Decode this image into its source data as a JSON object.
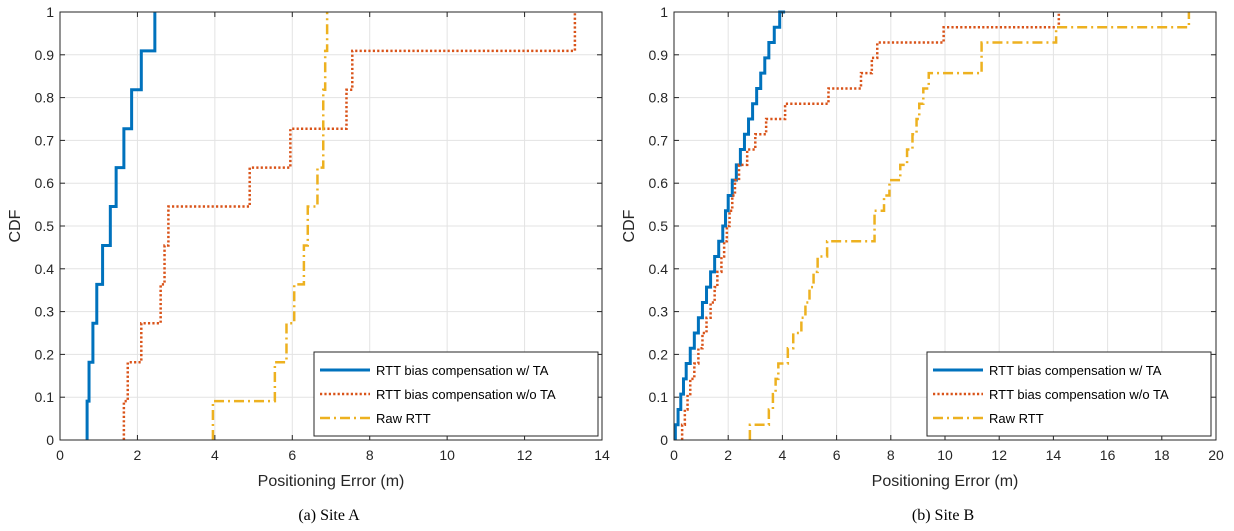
{
  "colors": {
    "tracking_ta": "#0072BD",
    "tracking_nota": "#D95319",
    "raw": "#EDB120",
    "grid": "#e3e3e3",
    "axis": "#262626"
  },
  "legend_entries": [
    "RTT bias compensation w/ TA",
    "RTT bias compensation w/o TA",
    "Raw RTT"
  ],
  "chart_data": [
    {
      "type": "line",
      "step": true,
      "caption": "(a)  Site A",
      "xlabel": "Positioning Error (m)",
      "ylabel": "CDF",
      "xlim": [
        0,
        14
      ],
      "ylim": [
        0,
        1
      ],
      "xticks": [
        0,
        2,
        4,
        6,
        8,
        10,
        12,
        14
      ],
      "yticks": [
        0,
        0.1,
        0.2,
        0.3,
        0.4,
        0.5,
        0.6,
        0.7,
        0.8,
        0.9,
        1
      ],
      "ytick_labels": [
        "0",
        "0.1",
        "0.2",
        "0.3",
        "0.4",
        "0.5",
        "0.6",
        "0.7",
        "0.8",
        "0.9",
        "1"
      ],
      "grid": true,
      "legend_position": "bottom-right",
      "series": [
        {
          "name": "RTT bias compensation w/ TA",
          "style": "solid",
          "x": [
            0.7,
            0.75,
            0.85,
            0.95,
            1.1,
            1.3,
            1.45,
            1.65,
            1.85,
            2.1,
            2.45
          ],
          "y": [
            0.0909,
            0.1818,
            0.2727,
            0.3636,
            0.4545,
            0.5455,
            0.6364,
            0.7273,
            0.8182,
            0.9091,
            1.0
          ]
        },
        {
          "name": "RTT bias compensation w/o TA",
          "style": "dotted",
          "x": [
            1.65,
            1.75,
            2.1,
            2.6,
            2.7,
            2.8,
            4.9,
            5.95,
            7.4,
            7.55,
            13.3
          ],
          "y": [
            0.0909,
            0.1818,
            0.2727,
            0.3636,
            0.4545,
            0.5455,
            0.6364,
            0.7273,
            0.8182,
            0.9091,
            1.0
          ]
        },
        {
          "name": "Raw RTT",
          "style": "dashdot",
          "x": [
            3.95,
            5.55,
            5.85,
            6.05,
            6.3,
            6.4,
            6.65,
            6.8,
            6.8,
            6.85,
            6.9
          ],
          "y": [
            0.0909,
            0.1818,
            0.2727,
            0.3636,
            0.4545,
            0.5455,
            0.6364,
            0.7273,
            0.8182,
            0.9091,
            1.0
          ]
        }
      ]
    },
    {
      "type": "line",
      "step": true,
      "caption": "(b)  Site B",
      "xlabel": "Positioning Error (m)",
      "ylabel": "CDF",
      "xlim": [
        0,
        20
      ],
      "ylim": [
        0,
        1
      ],
      "xticks": [
        0,
        2,
        4,
        6,
        8,
        10,
        12,
        14,
        16,
        18,
        20
      ],
      "yticks": [
        0,
        0.1,
        0.2,
        0.3,
        0.4,
        0.5,
        0.6,
        0.7,
        0.8,
        0.9,
        1
      ],
      "ytick_labels": [
        "0",
        "0.1",
        "0.2",
        "0.3",
        "0.4",
        "0.5",
        "0.6",
        "0.7",
        "0.8",
        "0.9",
        "1"
      ],
      "grid": true,
      "legend_position": "bottom-right",
      "series": [
        {
          "name": "RTT bias compensation w/ TA",
          "style": "solid",
          "x": [
            0.05,
            0.15,
            0.25,
            0.35,
            0.45,
            0.6,
            0.75,
            0.9,
            1.05,
            1.2,
            1.35,
            1.5,
            1.65,
            1.8,
            1.9,
            2.0,
            2.15,
            2.3,
            2.45,
            2.6,
            2.75,
            2.9,
            3.05,
            3.2,
            3.35,
            3.5,
            3.7,
            3.9,
            4.1
          ],
          "y": [
            0.0357,
            0.0714,
            0.1071,
            0.1429,
            0.1786,
            0.2143,
            0.25,
            0.2857,
            0.3214,
            0.3571,
            0.3929,
            0.4286,
            0.4643,
            0.5,
            0.5357,
            0.5714,
            0.6071,
            0.6429,
            0.6786,
            0.7143,
            0.75,
            0.7857,
            0.8214,
            0.8571,
            0.8929,
            0.9286,
            0.9643,
            1.0,
            1.0
          ]
        },
        {
          "name": "RTT bias compensation w/o TA",
          "style": "dotted",
          "x": [
            0.3,
            0.4,
            0.5,
            0.6,
            0.75,
            0.9,
            1.05,
            1.2,
            1.35,
            1.5,
            1.6,
            1.75,
            1.85,
            1.95,
            2.05,
            2.15,
            2.25,
            2.4,
            2.7,
            3.0,
            3.4,
            4.1,
            5.7,
            6.9,
            7.3,
            7.5,
            9.95,
            14.2
          ],
          "y": [
            0.0357,
            0.0714,
            0.1071,
            0.1429,
            0.1786,
            0.2143,
            0.25,
            0.2857,
            0.3214,
            0.3571,
            0.3929,
            0.4286,
            0.4643,
            0.5,
            0.5357,
            0.5714,
            0.6071,
            0.6429,
            0.6786,
            0.7143,
            0.75,
            0.7857,
            0.8214,
            0.8571,
            0.8929,
            0.9286,
            0.9643,
            1.0
          ]
        },
        {
          "name": "Raw RTT",
          "style": "dashdot",
          "x": [
            2.8,
            3.5,
            3.65,
            3.75,
            3.85,
            4.2,
            4.4,
            4.7,
            4.85,
            5.0,
            5.15,
            5.3,
            5.65,
            7.4,
            7.75,
            7.95,
            8.35,
            8.6,
            8.8,
            8.95,
            9.05,
            9.2,
            9.4,
            11.35,
            14.1,
            19.0,
            19.0,
            19.0
          ],
          "y": [
            0.0357,
            0.0714,
            0.1071,
            0.1429,
            0.1786,
            0.2143,
            0.25,
            0.2857,
            0.3214,
            0.3571,
            0.3929,
            0.4286,
            0.4643,
            0.5357,
            0.5714,
            0.6071,
            0.6429,
            0.6786,
            0.7143,
            0.75,
            0.7857,
            0.8214,
            0.8571,
            0.9286,
            0.9643,
            0.9643,
            0.9643,
            1.0
          ]
        }
      ]
    }
  ]
}
